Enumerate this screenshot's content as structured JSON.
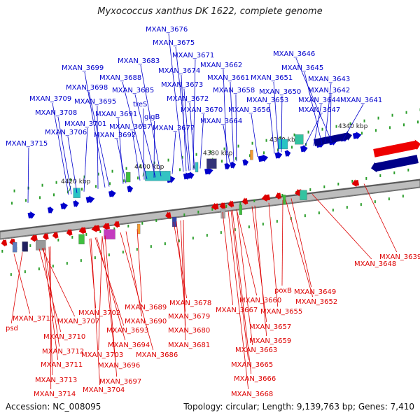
{
  "title": "Myxococcus xanthus DK 1622, complete genome",
  "footer": {
    "accession": "Accession: NC_008095",
    "topology": "Topology: circular; Length: 9,139,763 bp; Genes: 7,410"
  },
  "scale_labels": [
    "4420 kbp",
    "4400 kbp",
    "4380 kbp",
    "4360 kbp",
    "4340 kbp"
  ],
  "colors": {
    "top": "#0000cc",
    "bottom": "#dd0000"
  },
  "top_labels": [
    "MXAN_3676",
    "MXAN_3675",
    "MXAN_3646",
    "MXAN_3683",
    "MXAN_3671",
    "MXAN_3699",
    "MXAN_3674",
    "MXAN_3662",
    "MXAN_3645",
    "MXAN_3688",
    "MXAN_3661",
    "MXAN_3651",
    "MXAN_3643",
    "MXAN_3698",
    "MXAN_3673",
    "MXAN_3685",
    "MXAN_3658",
    "MXAN_3650",
    "MXAN_3642",
    "MXAN_3709",
    "MXAN_3672",
    "MXAN_3653",
    "MXAN_3644",
    "MXAN_3641",
    "MXAN_3695",
    "treS",
    "MXAN_3670",
    "MXAN_3656",
    "MXAN_3647",
    "MXAN_3708",
    "MXAN_3691",
    "glgB",
    "MXAN_3701",
    "MXAN_3664",
    "MXAN_3687",
    "MXAN_3677",
    "MXAN_3706",
    "MXAN_3692",
    "MXAN_3715"
  ],
  "bottom_labels": [
    "MXAN_3639",
    "MXAN_3648",
    "MXAN_3649",
    "poxB",
    "MXAN_3678",
    "MXAN_3660",
    "MXAN_3689",
    "MXAN_3652",
    "MXAN_3667",
    "MXAN_3655",
    "MXAN_3702",
    "MXAN_3679",
    "MXAN_3717",
    "MXAN_3707",
    "MXAN_3690",
    "psd",
    "MXAN_3693",
    "MXAN_3680",
    "MXAN_3657",
    "MXAN_3710",
    "MXAN_3659",
    "MXAN_3694",
    "MXAN_3681",
    "MXAN_3712",
    "MXAN_3703",
    "MXAN_3686",
    "MXAN_3663",
    "MXAN_3711",
    "MXAN_3696",
    "MXAN_3665",
    "MXAN_3713",
    "MXAN_3697",
    "MXAN_3666",
    "MXAN_3704",
    "MXAN_3714",
    "MXAN_3668"
  ]
}
